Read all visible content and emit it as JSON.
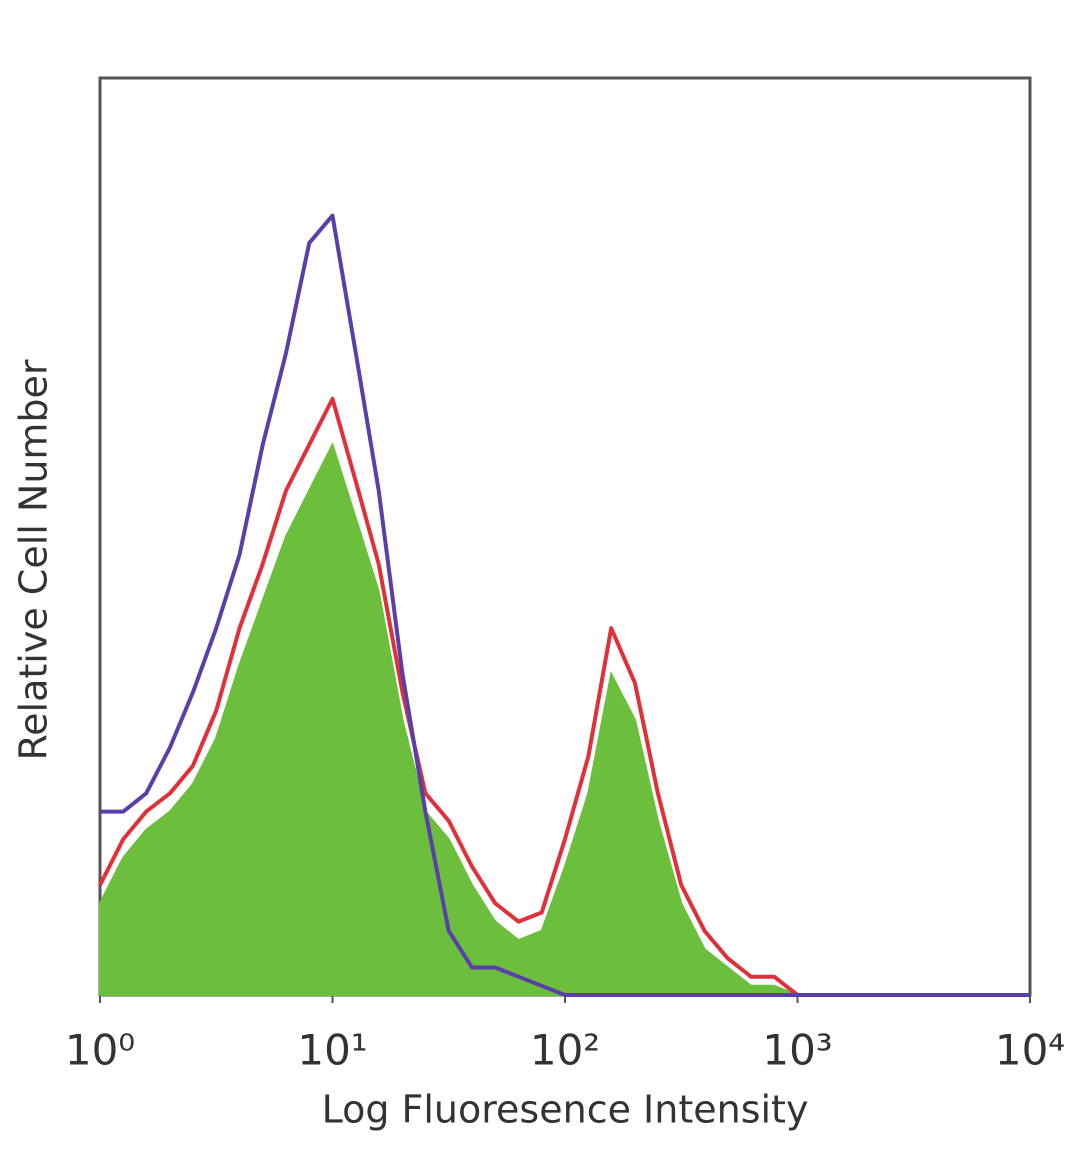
{
  "chart_data": {
    "type": "histogram",
    "x_label": "Log Fluoresence Intensity",
    "y_label": "Relative Cell Number",
    "x_scale": "log",
    "xlim": [
      1,
      10000
    ],
    "ylim": [
      0,
      100
    ],
    "xticks": [
      {
        "value": 1,
        "label": "10⁰"
      },
      {
        "value": 10,
        "label": "10¹"
      },
      {
        "value": 100,
        "label": "10²"
      },
      {
        "value": 1000,
        "label": "10³"
      },
      {
        "value": 10000,
        "label": "10⁴"
      }
    ],
    "x": [
      1,
      1.26,
      1.58,
      2,
      2.51,
      3.16,
      3.98,
      5.01,
      6.31,
      7.94,
      10,
      12.6,
      15.8,
      20,
      25.1,
      31.6,
      39.8,
      50.1,
      63.1,
      79.4,
      100,
      126,
      158,
      200,
      251,
      316,
      398,
      501,
      631,
      794,
      1000,
      1259,
      1585,
      1995,
      2512,
      3162,
      3981,
      5012,
      6310,
      7943,
      10000
    ],
    "series": [
      {
        "color": "#6cbf3c",
        "fill": true,
        "values": [
          10,
          15,
          18,
          20,
          23,
          28,
          36,
          43,
          50,
          55,
          60,
          52,
          44,
          30,
          20,
          17,
          12,
          8,
          6,
          7,
          14,
          22,
          35,
          30,
          19,
          10,
          5,
          3,
          1,
          1,
          0,
          0,
          0,
          0,
          0,
          0,
          0,
          0,
          0,
          0,
          0
        ]
      },
      {
        "color": "#e0303a",
        "fill": false,
        "values": [
          12,
          17,
          20,
          22,
          25,
          31,
          40,
          47,
          55,
          60,
          65,
          56,
          47,
          33,
          22,
          19,
          14,
          10,
          8,
          9,
          17,
          26,
          40,
          34,
          22,
          12,
          7,
          4,
          2,
          2,
          0,
          0,
          0,
          0,
          0,
          0,
          0,
          0,
          0,
          0,
          0
        ]
      },
      {
        "color": "#5b3fa8",
        "fill": false,
        "values": [
          20,
          20,
          22,
          27,
          33,
          40,
          48,
          60,
          70,
          82,
          85,
          70,
          55,
          35,
          20,
          7,
          3,
          3,
          2,
          1,
          0,
          0,
          0,
          0,
          0,
          0,
          0,
          0,
          0,
          0,
          0,
          0,
          0,
          0,
          0,
          0,
          0,
          0,
          0,
          0,
          0
        ]
      }
    ]
  }
}
